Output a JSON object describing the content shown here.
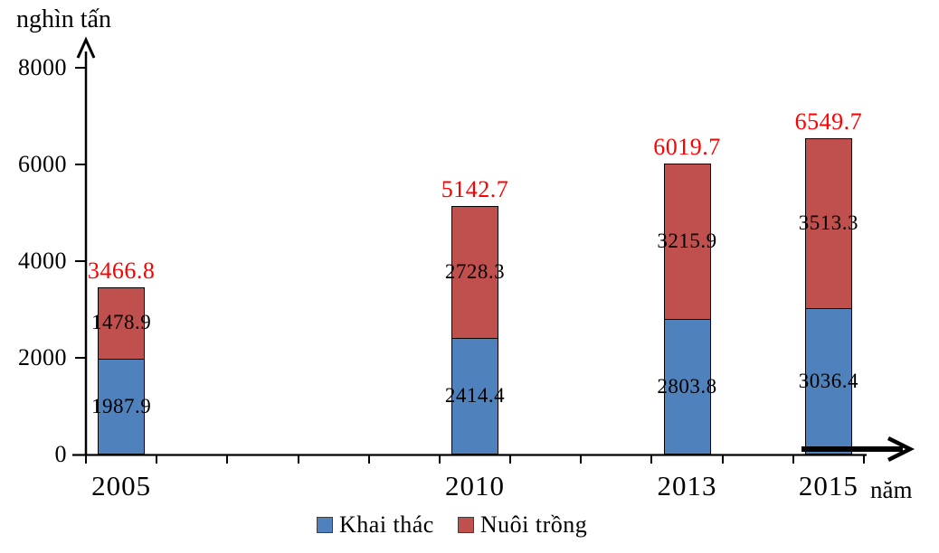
{
  "chart_data": {
    "type": "bar",
    "stacked": true,
    "ylabel": "nghìn tấn",
    "xlabel": "năm",
    "ylim": [
      0,
      8000
    ],
    "y_ticks": [
      0,
      2000,
      4000,
      6000,
      8000
    ],
    "categories": [
      "2005",
      "2010",
      "2013",
      "2015"
    ],
    "category_years": [
      2005,
      2010,
      2013,
      2015
    ],
    "axis_year_start": 2005,
    "axis_year_slots": 11,
    "series": [
      {
        "name": "Khai thác",
        "color": "#4F81BD",
        "values": [
          1987.9,
          2414.4,
          2803.8,
          3036.4
        ]
      },
      {
        "name": "Nuôi trồng",
        "color": "#C0504D",
        "values": [
          1478.9,
          2728.3,
          3215.9,
          3513.3
        ]
      }
    ],
    "totals": {
      "values": [
        3466.8,
        5142.7,
        6019.7,
        6549.7
      ],
      "color": "#FF0000"
    },
    "grid": false,
    "legend_position": "bottom",
    "legend": [
      "Khai thác",
      "Nuôi trồng"
    ],
    "axis_color": "#000000",
    "value_label_color": "#000000"
  }
}
